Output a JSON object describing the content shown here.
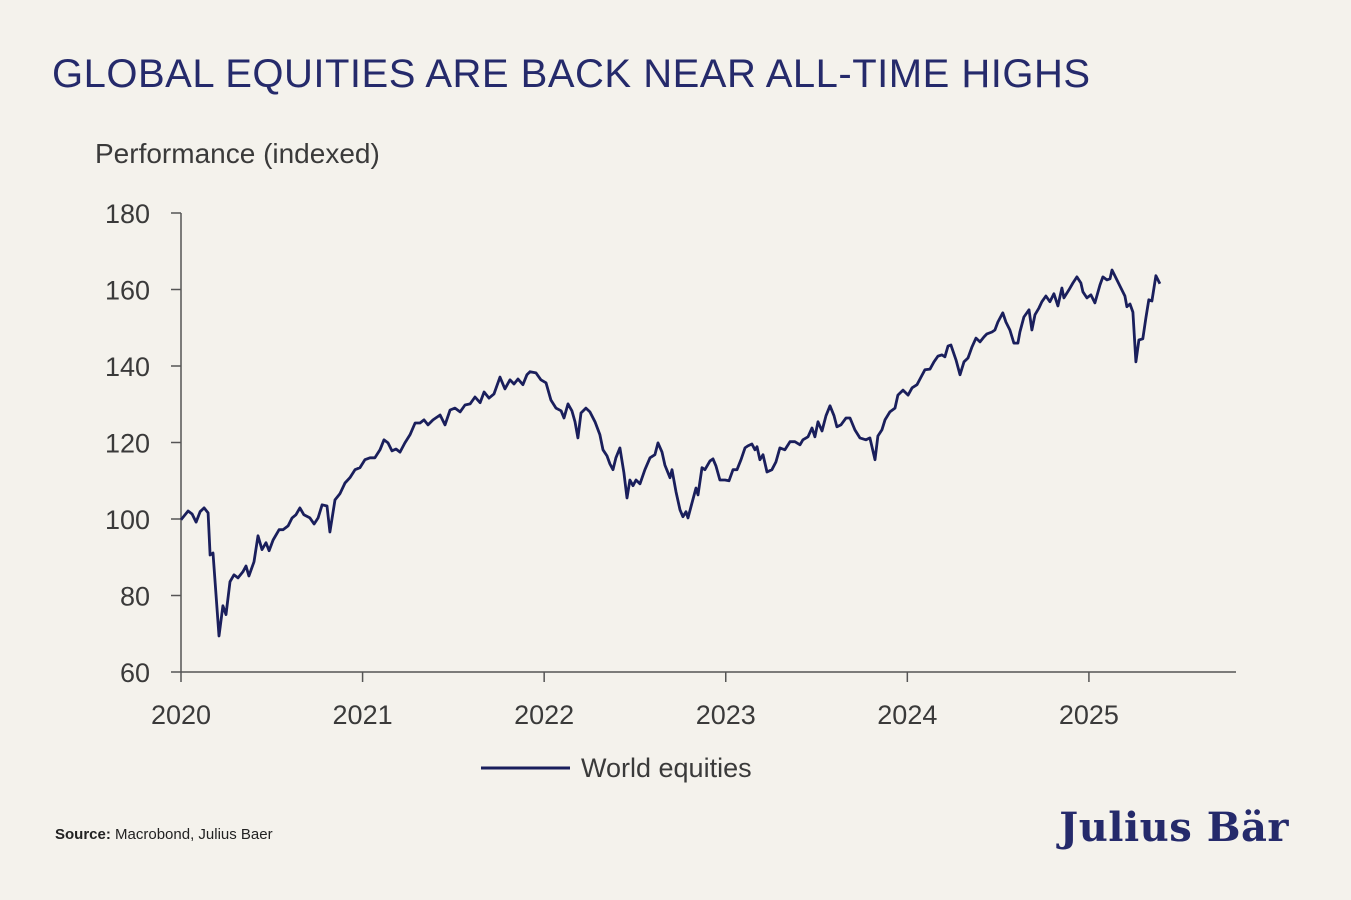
{
  "colors": {
    "background": "#f4f2ec",
    "line": "#1a1f5c",
    "title": "#252a6b",
    "axis": "#555555"
  },
  "source": {
    "label": "Source:",
    "text": "Macrobond, Julius Baer"
  },
  "logo": "Julius Bär",
  "chart_data": {
    "type": "line",
    "title": "GLOBAL EQUITIES ARE BACK NEAR ALL-TIME HIGHS",
    "ylabel": "Performance (indexed)",
    "xlabel": "",
    "xlim": [
      2020,
      2025.81
    ],
    "ylim": [
      60,
      180
    ],
    "yticks": [
      60,
      80,
      100,
      120,
      140,
      160,
      180
    ],
    "xticks": [
      2020,
      2021,
      2022,
      2023,
      2024,
      2025
    ],
    "grid": false,
    "legend": "bottom-center",
    "series": [
      {
        "name": "World equities",
        "color": "#1a1f5c",
        "points": [
          [
            2020.0,
            99.8
          ],
          [
            2020.039,
            102.1
          ],
          [
            2020.061,
            101.3
          ],
          [
            2020.083,
            99.2
          ],
          [
            2020.105,
            101.9
          ],
          [
            2020.127,
            102.9
          ],
          [
            2020.149,
            101.6
          ],
          [
            2020.16,
            90.6
          ],
          [
            2020.176,
            91.1
          ],
          [
            2020.209,
            69.4
          ],
          [
            2020.231,
            77.3
          ],
          [
            2020.248,
            75.0
          ],
          [
            2020.27,
            83.6
          ],
          [
            2020.292,
            85.4
          ],
          [
            2020.314,
            84.6
          ],
          [
            2020.341,
            86.2
          ],
          [
            2020.358,
            87.7
          ],
          [
            2020.374,
            85.1
          ],
          [
            2020.402,
            88.8
          ],
          [
            2020.424,
            95.6
          ],
          [
            2020.446,
            92.0
          ],
          [
            2020.468,
            93.8
          ],
          [
            2020.485,
            91.7
          ],
          [
            2020.507,
            94.5
          ],
          [
            2020.54,
            97.2
          ],
          [
            2020.562,
            97.2
          ],
          [
            2020.59,
            98.2
          ],
          [
            2020.612,
            100.3
          ],
          [
            2020.633,
            101.1
          ],
          [
            2020.655,
            102.9
          ],
          [
            2020.677,
            101.1
          ],
          [
            2020.71,
            100.3
          ],
          [
            2020.733,
            98.7
          ],
          [
            2020.755,
            100.3
          ],
          [
            2020.777,
            103.7
          ],
          [
            2020.804,
            103.4
          ],
          [
            2020.82,
            96.6
          ],
          [
            2020.848,
            105.0
          ],
          [
            2020.875,
            106.6
          ],
          [
            2020.903,
            109.4
          ],
          [
            2020.93,
            110.8
          ],
          [
            2020.958,
            112.9
          ],
          [
            2020.985,
            113.4
          ],
          [
            2021.013,
            115.5
          ],
          [
            2021.041,
            116.0
          ],
          [
            2021.068,
            116.0
          ],
          [
            2021.096,
            118.1
          ],
          [
            2021.118,
            120.7
          ],
          [
            2021.14,
            119.9
          ],
          [
            2021.162,
            117.8
          ],
          [
            2021.184,
            118.3
          ],
          [
            2021.206,
            117.5
          ],
          [
            2021.233,
            119.9
          ],
          [
            2021.261,
            122.0
          ],
          [
            2021.289,
            125.1
          ],
          [
            2021.316,
            125.1
          ],
          [
            2021.338,
            125.9
          ],
          [
            2021.36,
            124.6
          ],
          [
            2021.388,
            125.9
          ],
          [
            2021.427,
            127.2
          ],
          [
            2021.454,
            124.6
          ],
          [
            2021.482,
            128.5
          ],
          [
            2021.509,
            129.0
          ],
          [
            2021.537,
            128.0
          ],
          [
            2021.564,
            129.8
          ],
          [
            2021.592,
            130.1
          ],
          [
            2021.619,
            131.9
          ],
          [
            2021.647,
            130.4
          ],
          [
            2021.669,
            133.2
          ],
          [
            2021.696,
            131.6
          ],
          [
            2021.724,
            132.7
          ],
          [
            2021.757,
            137.1
          ],
          [
            2021.784,
            134.0
          ],
          [
            2021.812,
            136.4
          ],
          [
            2021.834,
            135.3
          ],
          [
            2021.856,
            136.6
          ],
          [
            2021.883,
            135.1
          ],
          [
            2021.905,
            137.7
          ],
          [
            2021.922,
            138.5
          ],
          [
            2021.955,
            138.2
          ],
          [
            2021.982,
            136.4
          ],
          [
            2022.01,
            135.6
          ],
          [
            2022.037,
            131.1
          ],
          [
            2022.065,
            129.0
          ],
          [
            2022.093,
            128.3
          ],
          [
            2022.109,
            126.4
          ],
          [
            2022.131,
            130.1
          ],
          [
            2022.153,
            128.3
          ],
          [
            2022.17,
            125.4
          ],
          [
            2022.186,
            121.2
          ],
          [
            2022.203,
            127.7
          ],
          [
            2022.23,
            129.0
          ],
          [
            2022.252,
            128.0
          ],
          [
            2022.28,
            125.4
          ],
          [
            2022.307,
            122.0
          ],
          [
            2022.324,
            118.1
          ],
          [
            2022.346,
            116.5
          ],
          [
            2022.362,
            114.4
          ],
          [
            2022.379,
            112.9
          ],
          [
            2022.395,
            116.0
          ],
          [
            2022.417,
            118.6
          ],
          [
            2022.439,
            112.1
          ],
          [
            2022.456,
            105.5
          ],
          [
            2022.472,
            110.2
          ],
          [
            2022.489,
            108.7
          ],
          [
            2022.506,
            110.2
          ],
          [
            2022.528,
            109.2
          ],
          [
            2022.555,
            112.9
          ],
          [
            2022.583,
            116.0
          ],
          [
            2022.61,
            116.8
          ],
          [
            2022.627,
            119.9
          ],
          [
            2022.649,
            117.5
          ],
          [
            2022.665,
            114.1
          ],
          [
            2022.693,
            110.8
          ],
          [
            2022.704,
            112.9
          ],
          [
            2022.726,
            107.1
          ],
          [
            2022.748,
            102.4
          ],
          [
            2022.764,
            100.6
          ],
          [
            2022.781,
            101.9
          ],
          [
            2022.792,
            100.3
          ],
          [
            2022.814,
            104.2
          ],
          [
            2022.836,
            108.1
          ],
          [
            2022.847,
            106.3
          ],
          [
            2022.869,
            113.4
          ],
          [
            2022.885,
            112.9
          ],
          [
            2022.913,
            115.2
          ],
          [
            2022.93,
            115.7
          ],
          [
            2022.946,
            113.9
          ],
          [
            2022.968,
            110.2
          ],
          [
            2022.996,
            110.2
          ],
          [
            2023.018,
            110.0
          ],
          [
            2023.04,
            112.9
          ],
          [
            2023.062,
            112.9
          ],
          [
            2023.084,
            115.5
          ],
          [
            2023.106,
            118.6
          ],
          [
            2023.122,
            119.1
          ],
          [
            2023.144,
            119.6
          ],
          [
            2023.161,
            118.1
          ],
          [
            2023.172,
            118.9
          ],
          [
            2023.188,
            115.5
          ],
          [
            2023.205,
            116.8
          ],
          [
            2023.227,
            112.3
          ],
          [
            2023.254,
            112.9
          ],
          [
            2023.276,
            114.9
          ],
          [
            2023.298,
            118.6
          ],
          [
            2023.326,
            118.1
          ],
          [
            2023.354,
            120.2
          ],
          [
            2023.381,
            120.2
          ],
          [
            2023.409,
            119.4
          ],
          [
            2023.425,
            120.7
          ],
          [
            2023.453,
            121.5
          ],
          [
            2023.475,
            123.8
          ],
          [
            2023.491,
            121.5
          ],
          [
            2023.508,
            125.4
          ],
          [
            2023.53,
            123.0
          ],
          [
            2023.552,
            127.0
          ],
          [
            2023.574,
            129.6
          ],
          [
            2023.596,
            127.0
          ],
          [
            2023.612,
            124.1
          ],
          [
            2023.634,
            124.6
          ],
          [
            2023.662,
            126.4
          ],
          [
            2023.684,
            126.4
          ],
          [
            2023.711,
            123.3
          ],
          [
            2023.739,
            121.2
          ],
          [
            2023.772,
            120.7
          ],
          [
            2023.794,
            121.2
          ],
          [
            2023.822,
            115.5
          ],
          [
            2023.838,
            121.7
          ],
          [
            2023.86,
            123.3
          ],
          [
            2023.877,
            125.9
          ],
          [
            2023.904,
            128.0
          ],
          [
            2023.932,
            129.0
          ],
          [
            2023.948,
            132.4
          ],
          [
            2023.976,
            133.7
          ],
          [
            2024.004,
            132.4
          ],
          [
            2024.026,
            134.3
          ],
          [
            2024.053,
            135.1
          ],
          [
            2024.075,
            137.1
          ],
          [
            2024.097,
            139.0
          ],
          [
            2024.125,
            139.2
          ],
          [
            2024.147,
            141.1
          ],
          [
            2024.169,
            142.6
          ],
          [
            2024.191,
            142.9
          ],
          [
            2024.207,
            142.4
          ],
          [
            2024.224,
            145.2
          ],
          [
            2024.24,
            145.5
          ],
          [
            2024.268,
            141.6
          ],
          [
            2024.29,
            137.7
          ],
          [
            2024.312,
            141.1
          ],
          [
            2024.334,
            142.1
          ],
          [
            2024.356,
            145.0
          ],
          [
            2024.378,
            147.3
          ],
          [
            2024.4,
            146.3
          ],
          [
            2024.422,
            147.6
          ],
          [
            2024.438,
            148.4
          ],
          [
            2024.466,
            148.9
          ],
          [
            2024.482,
            149.4
          ],
          [
            2024.499,
            151.5
          ],
          [
            2024.526,
            153.9
          ],
          [
            2024.543,
            151.5
          ],
          [
            2024.565,
            149.4
          ],
          [
            2024.587,
            146.0
          ],
          [
            2024.609,
            146.0
          ],
          [
            2024.62,
            148.9
          ],
          [
            2024.642,
            152.8
          ],
          [
            2024.67,
            154.7
          ],
          [
            2024.686,
            149.4
          ],
          [
            2024.703,
            153.4
          ],
          [
            2024.725,
            155.2
          ],
          [
            2024.741,
            156.8
          ],
          [
            2024.763,
            158.3
          ],
          [
            2024.785,
            156.8
          ],
          [
            2024.807,
            158.9
          ],
          [
            2024.829,
            155.7
          ],
          [
            2024.851,
            160.4
          ],
          [
            2024.862,
            157.8
          ],
          [
            2024.89,
            159.9
          ],
          [
            2024.912,
            161.7
          ],
          [
            2024.934,
            163.3
          ],
          [
            2024.956,
            161.7
          ],
          [
            2024.967,
            159.4
          ],
          [
            2024.989,
            157.8
          ],
          [
            2025.011,
            158.6
          ],
          [
            2025.033,
            156.5
          ],
          [
            2025.061,
            161.2
          ],
          [
            2025.077,
            163.3
          ],
          [
            2025.099,
            162.5
          ],
          [
            2025.116,
            162.8
          ],
          [
            2025.127,
            165.1
          ],
          [
            2025.154,
            162.5
          ],
          [
            2025.171,
            160.9
          ],
          [
            2025.198,
            158.3
          ],
          [
            2025.209,
            155.5
          ],
          [
            2025.226,
            156.2
          ],
          [
            2025.242,
            154.1
          ],
          [
            2025.259,
            141.1
          ],
          [
            2025.275,
            146.8
          ],
          [
            2025.297,
            147.1
          ],
          [
            2025.314,
            152.6
          ],
          [
            2025.33,
            157.3
          ],
          [
            2025.347,
            157.0
          ],
          [
            2025.369,
            163.6
          ],
          [
            2025.391,
            161.5
          ]
        ]
      }
    ]
  }
}
